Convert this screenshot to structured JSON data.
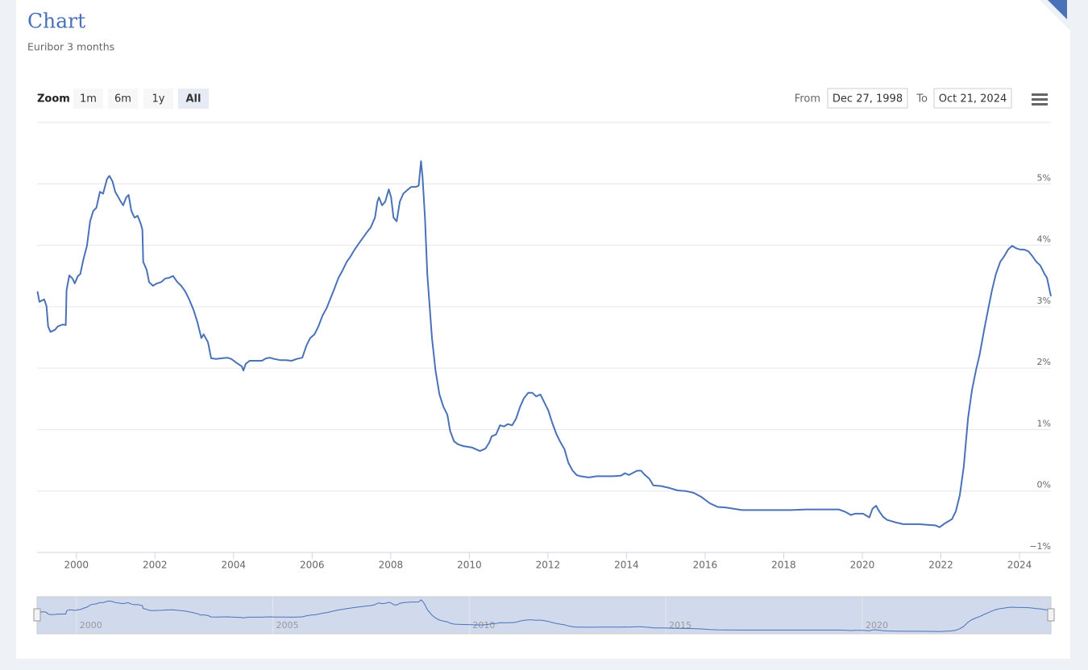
{
  "chart_data": {
    "type": "line",
    "title": "Chart",
    "subtitle": "Euribor 3 months",
    "color": "#4a72b8",
    "x": [
      1999.01,
      1999.06,
      1999.18,
      1999.24,
      1999.28,
      1999.34,
      1999.45,
      1999.53,
      1999.65,
      1999.73,
      1999.75,
      1999.82,
      1999.9,
      1999.96,
      2000.04,
      2000.1,
      2000.18,
      2000.27,
      2000.35,
      2000.43,
      2000.51,
      2000.6,
      2000.68,
      2000.78,
      2000.84,
      2000.92,
      2000.99,
      2001.07,
      2001.13,
      2001.19,
      2001.27,
      2001.33,
      2001.4,
      2001.48,
      2001.56,
      2001.64,
      2001.68,
      2001.7,
      2001.79,
      2001.85,
      2001.95,
      2002.05,
      2002.16,
      2002.26,
      2002.36,
      2002.46,
      2002.57,
      2002.67,
      2002.77,
      2002.87,
      2002.98,
      2003.08,
      2003.18,
      2003.24,
      2003.35,
      2003.43,
      2003.55,
      2003.7,
      2003.84,
      2003.94,
      2004.07,
      2004.21,
      2004.25,
      2004.31,
      2004.41,
      2004.58,
      2004.72,
      2004.83,
      2004.93,
      2005.03,
      2005.19,
      2005.34,
      2005.48,
      2005.61,
      2005.75,
      2005.85,
      2005.95,
      2006.06,
      2006.16,
      2006.26,
      2006.37,
      2006.47,
      2006.57,
      2006.67,
      2006.78,
      2006.88,
      2006.98,
      2007.08,
      2007.19,
      2007.29,
      2007.39,
      2007.49,
      2007.6,
      2007.66,
      2007.7,
      2007.78,
      2007.86,
      2007.95,
      2008.01,
      2008.07,
      2008.15,
      2008.23,
      2008.32,
      2008.44,
      2008.52,
      2008.64,
      2008.71,
      2008.77,
      2008.81,
      2008.87,
      2008.93,
      2008.99,
      2009.05,
      2009.14,
      2009.24,
      2009.34,
      2009.44,
      2009.51,
      2009.61,
      2009.71,
      2009.85,
      2010.06,
      2010.27,
      2010.41,
      2010.51,
      2010.57,
      2010.68,
      2010.78,
      2010.88,
      2010.98,
      2011.09,
      2011.19,
      2011.29,
      2011.39,
      2011.5,
      2011.6,
      2011.7,
      2011.81,
      2011.91,
      2012.01,
      2012.11,
      2012.22,
      2012.32,
      2012.42,
      2012.52,
      2012.63,
      2012.73,
      2012.83,
      2013.04,
      2013.24,
      2013.45,
      2013.65,
      2013.86,
      2013.96,
      2014.06,
      2014.27,
      2014.37,
      2014.47,
      2014.58,
      2014.68,
      2014.88,
      2015.09,
      2015.3,
      2015.5,
      2015.71,
      2015.91,
      2016.12,
      2016.32,
      2016.53,
      2016.94,
      2017.35,
      2017.76,
      2018.17,
      2018.58,
      2018.99,
      2019.4,
      2019.57,
      2019.71,
      2019.81,
      2020.02,
      2020.18,
      2020.26,
      2020.35,
      2020.43,
      2020.53,
      2020.63,
      2020.84,
      2021.04,
      2021.25,
      2021.45,
      2021.66,
      2021.86,
      2021.97,
      2022.07,
      2022.17,
      2022.28,
      2022.38,
      2022.48,
      2022.58,
      2022.69,
      2022.79,
      2022.89,
      2022.99,
      2023.1,
      2023.2,
      2023.3,
      2023.4,
      2023.51,
      2023.61,
      2023.71,
      2023.81,
      2023.92,
      2024.02,
      2024.12,
      2024.23,
      2024.33,
      2024.43,
      2024.53,
      2024.64,
      2024.7,
      2024.8
    ],
    "values": [
      3.25,
      3.08,
      3.12,
      3.01,
      2.68,
      2.59,
      2.62,
      2.68,
      2.71,
      2.7,
      3.27,
      3.51,
      3.46,
      3.38,
      3.5,
      3.53,
      3.77,
      3.99,
      4.39,
      4.56,
      4.61,
      4.87,
      4.84,
      5.08,
      5.13,
      5.04,
      4.87,
      4.78,
      4.71,
      4.65,
      4.78,
      4.82,
      4.56,
      4.45,
      4.48,
      4.35,
      4.25,
      3.73,
      3.6,
      3.4,
      3.34,
      3.38,
      3.4,
      3.46,
      3.47,
      3.5,
      3.4,
      3.34,
      3.25,
      3.12,
      2.95,
      2.75,
      2.49,
      2.55,
      2.42,
      2.16,
      2.15,
      2.16,
      2.17,
      2.15,
      2.09,
      2.03,
      1.96,
      2.07,
      2.12,
      2.12,
      2.12,
      2.16,
      2.17,
      2.15,
      2.13,
      2.13,
      2.12,
      2.15,
      2.17,
      2.36,
      2.49,
      2.55,
      2.68,
      2.85,
      2.98,
      3.14,
      3.3,
      3.47,
      3.6,
      3.73,
      3.82,
      3.93,
      4.03,
      4.12,
      4.21,
      4.29,
      4.45,
      4.71,
      4.78,
      4.65,
      4.71,
      4.91,
      4.78,
      4.45,
      4.39,
      4.71,
      4.84,
      4.91,
      4.95,
      4.95,
      4.97,
      5.37,
      5.11,
      4.45,
      3.53,
      3.01,
      2.49,
      1.96,
      1.57,
      1.37,
      1.24,
      0.98,
      0.81,
      0.76,
      0.73,
      0.71,
      0.65,
      0.69,
      0.79,
      0.89,
      0.92,
      1.07,
      1.05,
      1.09,
      1.07,
      1.18,
      1.37,
      1.51,
      1.6,
      1.6,
      1.54,
      1.57,
      1.44,
      1.31,
      1.11,
      0.92,
      0.79,
      0.68,
      0.46,
      0.33,
      0.26,
      0.24,
      0.22,
      0.24,
      0.24,
      0.24,
      0.25,
      0.29,
      0.26,
      0.33,
      0.33,
      0.26,
      0.2,
      0.09,
      0.08,
      0.05,
      0.01,
      0,
      -0.03,
      -0.1,
      -0.2,
      -0.26,
      -0.27,
      -0.31,
      -0.31,
      -0.31,
      -0.31,
      -0.3,
      -0.3,
      -0.3,
      -0.34,
      -0.39,
      -0.37,
      -0.37,
      -0.43,
      -0.29,
      -0.24,
      -0.33,
      -0.42,
      -0.47,
      -0.51,
      -0.54,
      -0.54,
      -0.54,
      -0.55,
      -0.56,
      -0.59,
      -0.54,
      -0.5,
      -0.46,
      -0.33,
      -0.07,
      0.39,
      1.18,
      1.64,
      1.96,
      2.23,
      2.62,
      2.95,
      3.27,
      3.53,
      3.73,
      3.82,
      3.93,
      3.99,
      3.95,
      3.93,
      3.93,
      3.9,
      3.82,
      3.73,
      3.67,
      3.53,
      3.47,
      3.17
    ],
    "xlim": [
      1999.0,
      2024.8
    ],
    "xticks": [
      2000,
      2002,
      2004,
      2006,
      2008,
      2010,
      2012,
      2014,
      2016,
      2018,
      2020,
      2022,
      2024
    ],
    "ylim": [
      -1,
      6
    ],
    "yticks": [
      {
        "value": -1,
        "label": "−1%"
      },
      {
        "value": 0,
        "label": "0%"
      },
      {
        "value": 1,
        "label": "1%"
      },
      {
        "value": 2,
        "label": "2%"
      },
      {
        "value": 3,
        "label": "3%"
      },
      {
        "value": 4,
        "label": "4%"
      },
      {
        "value": 5,
        "label": "5%"
      }
    ],
    "grid": true,
    "navigator": {
      "ylim": [
        -0.7,
        5.5
      ],
      "xticks": [
        2000,
        2005,
        2010,
        2015,
        2020
      ]
    }
  },
  "ui": {
    "zoom_label": "Zoom",
    "buttons": [
      "1m",
      "6m",
      "1y",
      "All"
    ],
    "selected_button": 3,
    "from_label": "From",
    "from": "Dec 27, 1998",
    "to_label": "To",
    "to": "Oct 21, 2024"
  }
}
